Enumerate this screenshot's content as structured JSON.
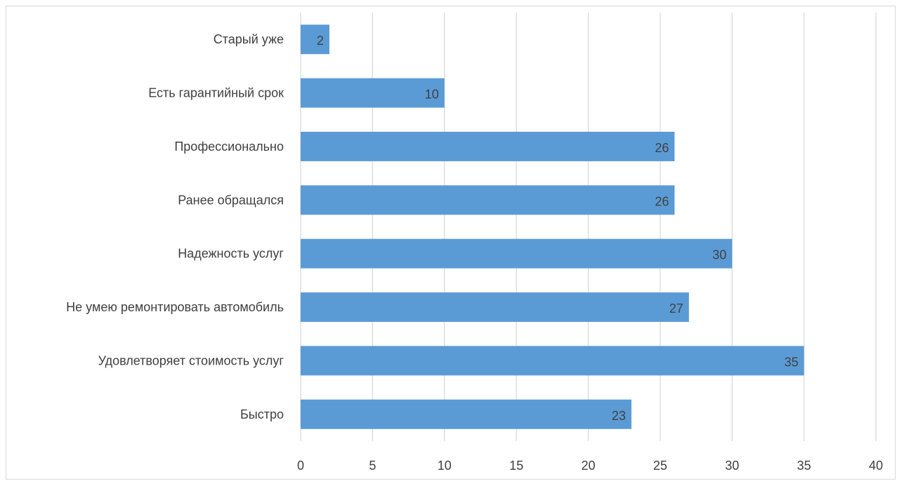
{
  "chart_data": {
    "type": "bar",
    "orientation": "horizontal",
    "title": "",
    "xlabel": "",
    "ylabel": "",
    "categories": [
      "Быстро",
      "Удовлетворяет стоимость услуг",
      "Не умею ремонтировать автомобиль",
      "Надежность услуг",
      "Ранее обращался",
      "Профессионально",
      "Есть гарантийный срок",
      "Старый уже"
    ],
    "values": [
      23,
      35,
      27,
      30,
      26,
      26,
      10,
      2
    ],
    "xlim": [
      0,
      40
    ],
    "x_ticks": [
      "0",
      "5",
      "10",
      "15",
      "20",
      "25",
      "30",
      "35",
      "40"
    ],
    "grid": "vertical",
    "legend": "none",
    "data_labels": "inside-end",
    "colors": {
      "bar": "#5b9bd5",
      "grid": "#d9d9d9",
      "text": "#404040"
    }
  }
}
